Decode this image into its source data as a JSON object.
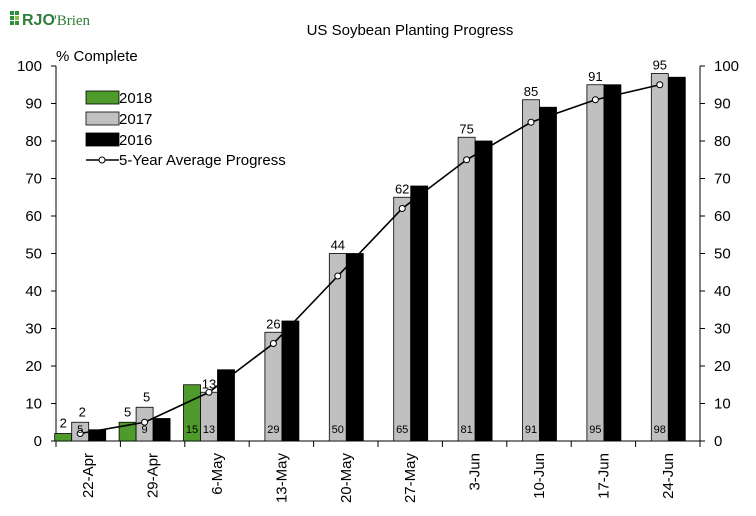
{
  "brand": {
    "logo_text_bold": "RJO",
    "logo_text_rest": "'Brien"
  },
  "chart_data": {
    "type": "bar",
    "title": "US Soybean Planting Progress",
    "ylabel": "% Complete",
    "xlabel": "",
    "ylim": [
      0,
      100
    ],
    "yticks": [
      0,
      10,
      20,
      30,
      40,
      50,
      60,
      70,
      80,
      90,
      100
    ],
    "secondary_yaxis": true,
    "grid": false,
    "legend_position": "top-left",
    "categories": [
      "22-Apr",
      "29-Apr",
      "6-May",
      "13-May",
      "20-May",
      "27-May",
      "3-Jun",
      "10-Jun",
      "17-Jun",
      "24-Jun"
    ],
    "series": [
      {
        "name": "2018",
        "kind": "bar",
        "color": "#4e9a2a",
        "values": [
          2,
          5,
          15,
          null,
          null,
          null,
          null,
          null,
          null,
          null
        ]
      },
      {
        "name": "2017",
        "kind": "bar",
        "color": "#c0c0c0",
        "values": [
          5,
          9,
          13,
          29,
          50,
          65,
          81,
          91,
          95,
          98
        ]
      },
      {
        "name": "2016",
        "kind": "bar",
        "color": "#000000",
        "values": [
          3,
          6,
          19,
          32,
          50,
          68,
          80,
          89,
          95,
          97
        ]
      },
      {
        "name": "5-Year Average Progress",
        "kind": "line",
        "color": "#000000",
        "values": [
          2,
          5,
          13,
          26,
          44,
          62,
          75,
          85,
          91,
          95
        ]
      }
    ],
    "top_labels": [
      {
        "category": "22-Apr",
        "values": [
          "2",
          "2"
        ]
      },
      {
        "category": "29-Apr",
        "values": [
          "5",
          "5"
        ]
      },
      {
        "category": "6-May",
        "values": [
          "13"
        ]
      },
      {
        "category": "13-May",
        "values": [
          "26"
        ]
      },
      {
        "category": "20-May",
        "values": [
          "44"
        ]
      },
      {
        "category": "27-May",
        "values": [
          "62"
        ]
      },
      {
        "category": "3-Jun",
        "values": [
          "75"
        ]
      },
      {
        "category": "10-Jun",
        "values": [
          "85"
        ]
      },
      {
        "category": "17-Jun",
        "values": [
          "91"
        ]
      },
      {
        "category": "24-Jun",
        "values": [
          "95"
        ]
      }
    ],
    "inside_labels": {
      "2018": [
        "",
        "",
        "15",
        "",
        "",
        "",
        "",
        "",
        "",
        ""
      ],
      "2017": [
        "5",
        "9",
        "13",
        "29",
        "50",
        "65",
        "81",
        "91",
        "95",
        "98"
      ]
    }
  }
}
